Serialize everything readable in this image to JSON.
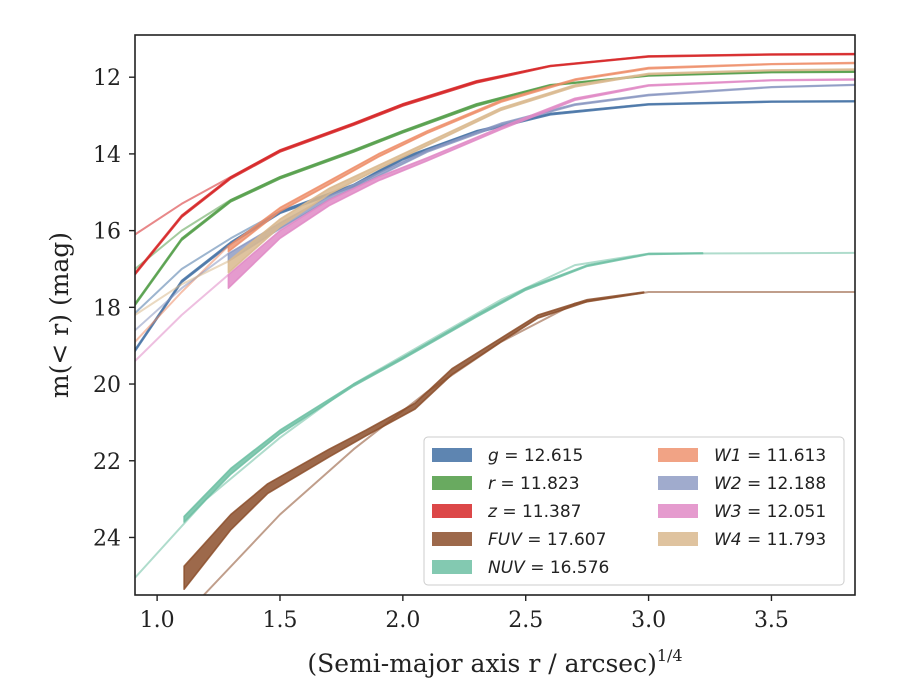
{
  "chart_data": {
    "type": "line",
    "title": "",
    "xlabel": "(Semi-major axis r / arcsec)",
    "xlabel_italic_symbol": "r",
    "xlabel_sup": "1/4",
    "ylabel": "m(< r) (mag)",
    "xlim": [
      0.91,
      3.84
    ],
    "ylim": [
      25.5,
      10.9
    ],
    "y_inverted": true,
    "grid": false,
    "legend_placement": "lower-right",
    "xticks": [
      1.0,
      1.5,
      2.0,
      2.5,
      3.0,
      3.5
    ],
    "xtick_labels": [
      "1.0",
      "1.5",
      "2.0",
      "2.5",
      "3.0",
      "3.5"
    ],
    "yticks": [
      12,
      14,
      16,
      18,
      20,
      22,
      24
    ],
    "ytick_labels": [
      "12",
      "14",
      "16",
      "18",
      "20",
      "22",
      "24"
    ],
    "series": [
      {
        "name": "g",
        "label_value": "= 12.615",
        "color": "#4c78a8",
        "opacity": 0.9,
        "x": [
          0.91,
          1.1,
          1.3,
          1.5,
          1.8,
          2.0,
          2.3,
          2.6,
          3.0,
          3.5,
          3.84
        ],
        "y": [
          19.1,
          17.3,
          16.3,
          15.5,
          14.8,
          14.1,
          13.4,
          12.95,
          12.7,
          12.63,
          12.62
        ],
        "lower": [
          19.15,
          17.35,
          16.35,
          15.55,
          14.85,
          14.15,
          13.45,
          12.98,
          12.72,
          12.65,
          12.64
        ],
        "secondary": {
          "x": [
            0.91,
            1.1,
            1.3,
            1.5,
            1.8,
            2.0,
            2.3,
            2.6,
            3.0,
            3.5,
            3.84
          ],
          "y": [
            18.15,
            17.0,
            16.2,
            15.5,
            14.8,
            14.1,
            13.4,
            12.95,
            12.7,
            12.63,
            12.62
          ]
        }
      },
      {
        "name": "r",
        "label_value": "= 11.823",
        "color": "#59a14f",
        "opacity": 0.9,
        "x": [
          0.91,
          1.1,
          1.3,
          1.5,
          1.8,
          2.0,
          2.3,
          2.6,
          3.0,
          3.5,
          3.84
        ],
        "y": [
          17.9,
          16.2,
          15.2,
          14.6,
          13.9,
          13.4,
          12.7,
          12.2,
          11.95,
          11.86,
          11.85
        ],
        "lower": [
          17.95,
          16.25,
          15.25,
          14.65,
          13.95,
          13.45,
          12.75,
          12.22,
          11.97,
          11.88,
          11.87
        ],
        "secondary": {
          "x": [
            0.91,
            1.1,
            1.3,
            1.5,
            1.8,
            2.0,
            2.3,
            2.6,
            3.0,
            3.5,
            3.84
          ],
          "y": [
            17.0,
            16.0,
            15.2,
            14.6,
            13.9,
            13.4,
            12.7,
            12.2,
            11.95,
            11.86,
            11.85
          ]
        }
      },
      {
        "name": "z",
        "label_value": "= 11.387",
        "color": "#d62728",
        "opacity": 0.85,
        "x": [
          0.91,
          1.1,
          1.3,
          1.5,
          1.8,
          2.0,
          2.3,
          2.6,
          3.0,
          3.5,
          3.84
        ],
        "y": [
          17.1,
          15.6,
          14.6,
          13.9,
          13.2,
          12.7,
          12.1,
          11.7,
          11.45,
          11.4,
          11.39
        ],
        "lower": [
          17.15,
          15.65,
          14.65,
          13.95,
          13.25,
          12.75,
          12.15,
          11.72,
          11.47,
          11.42,
          11.41
        ],
        "secondary": {
          "x": [
            0.91,
            1.1,
            1.3,
            1.5,
            1.8,
            2.0,
            2.3,
            2.6,
            3.0,
            3.5,
            3.84
          ],
          "y": [
            16.1,
            15.3,
            14.6,
            13.9,
            13.2,
            12.7,
            12.1,
            11.7,
            11.45,
            11.4,
            11.39
          ]
        }
      },
      {
        "name": "FUV",
        "label_value": "= 17.607",
        "color": "#8c4f2b",
        "opacity": 0.85,
        "x": [
          1.11,
          1.3,
          1.45,
          1.7,
          1.85,
          2.05,
          2.2,
          2.4,
          2.55,
          2.75,
          2.98
        ],
        "y": [
          24.75,
          23.4,
          22.6,
          21.7,
          21.2,
          20.5,
          19.6,
          18.8,
          18.2,
          17.8,
          17.6
        ],
        "lower": [
          25.35,
          23.8,
          22.85,
          21.9,
          21.35,
          20.65,
          19.75,
          18.9,
          18.28,
          17.85,
          17.62
        ],
        "secondary": {
          "x": [
            1.19,
            1.5,
            1.8,
            2.1,
            2.4,
            2.7,
            3.0,
            3.84
          ],
          "y": [
            25.5,
            23.4,
            21.7,
            20.2,
            18.9,
            17.9,
            17.6,
            17.6
          ]
        }
      },
      {
        "name": "NUV",
        "label_value": "= 16.576",
        "color": "#6dbfa3",
        "opacity": 0.85,
        "x": [
          1.11,
          1.3,
          1.5,
          1.8,
          2.0,
          2.3,
          2.5,
          2.75,
          3.0,
          3.22
        ],
        "y": [
          23.45,
          22.2,
          21.2,
          20.0,
          19.3,
          18.2,
          17.5,
          16.9,
          16.6,
          16.58
        ],
        "lower": [
          23.6,
          22.35,
          21.3,
          20.05,
          19.35,
          18.25,
          17.55,
          16.93,
          16.62,
          16.6
        ],
        "secondary": {
          "x": [
            0.91,
            1.2,
            1.5,
            1.8,
            2.1,
            2.4,
            2.7,
            3.0,
            3.84
          ],
          "y": [
            25.05,
            23.0,
            21.4,
            20.0,
            18.9,
            17.8,
            16.9,
            16.6,
            16.58
          ]
        }
      },
      {
        "name": "W1",
        "label_value": "= 11.613",
        "color": "#ee8c66",
        "opacity": 0.8,
        "x": [
          1.29,
          1.5,
          1.7,
          1.9,
          2.1,
          2.4,
          2.7,
          3.0,
          3.5,
          3.84
        ],
        "y": [
          16.4,
          15.4,
          14.7,
          14.0,
          13.4,
          12.6,
          12.05,
          11.75,
          11.65,
          11.62
        ],
        "lower": [
          16.55,
          15.5,
          14.8,
          14.08,
          13.46,
          12.65,
          12.08,
          11.78,
          11.67,
          11.64
        ],
        "secondary": {
          "x": [
            0.91,
            1.1,
            1.29
          ],
          "y": [
            18.9,
            17.6,
            16.4
          ]
        }
      },
      {
        "name": "W2",
        "label_value": "= 12.188",
        "color": "#8896c0",
        "opacity": 0.8,
        "x": [
          1.29,
          1.5,
          1.7,
          1.9,
          2.1,
          2.4,
          2.7,
          3.0,
          3.5,
          3.84
        ],
        "y": [
          16.6,
          15.8,
          15.1,
          14.5,
          13.9,
          13.2,
          12.7,
          12.45,
          12.25,
          12.19
        ],
        "lower": [
          16.8,
          15.95,
          15.2,
          14.58,
          13.95,
          13.25,
          12.73,
          12.48,
          12.27,
          12.21
        ],
        "secondary": {
          "x": [
            0.91,
            1.1,
            1.29
          ],
          "y": [
            18.6,
            17.5,
            16.6
          ]
        }
      },
      {
        "name": "W3",
        "label_value": "= 12.051",
        "color": "#e08ac6",
        "opacity": 0.85,
        "x": [
          1.29,
          1.5,
          1.7,
          1.9,
          2.1,
          2.4,
          2.7,
          3.0,
          3.5,
          3.84
        ],
        "y": [
          17.15,
          16.0,
          15.2,
          14.6,
          14.1,
          13.3,
          12.55,
          12.2,
          12.07,
          12.05
        ],
        "lower": [
          17.5,
          16.2,
          15.35,
          14.7,
          14.18,
          13.36,
          12.6,
          12.23,
          12.09,
          12.07
        ],
        "secondary": {
          "x": [
            0.91,
            1.1,
            1.29
          ],
          "y": [
            19.4,
            18.2,
            17.15
          ]
        }
      },
      {
        "name": "W4",
        "label_value": "= 11.793",
        "color": "#d9b98e",
        "opacity": 0.85,
        "x": [
          1.29,
          1.5,
          1.7,
          1.9,
          2.1,
          2.4,
          2.7,
          3.0,
          3.5,
          3.84
        ],
        "y": [
          16.8,
          15.7,
          14.9,
          14.3,
          13.7,
          12.8,
          12.2,
          11.9,
          11.81,
          11.79
        ],
        "lower": [
          17.1,
          15.9,
          15.05,
          14.4,
          13.78,
          12.86,
          12.25,
          11.93,
          11.83,
          11.81
        ],
        "secondary": {
          "x": [
            0.91,
            1.1,
            1.29
          ],
          "y": [
            18.2,
            17.4,
            16.8
          ]
        }
      }
    ]
  }
}
